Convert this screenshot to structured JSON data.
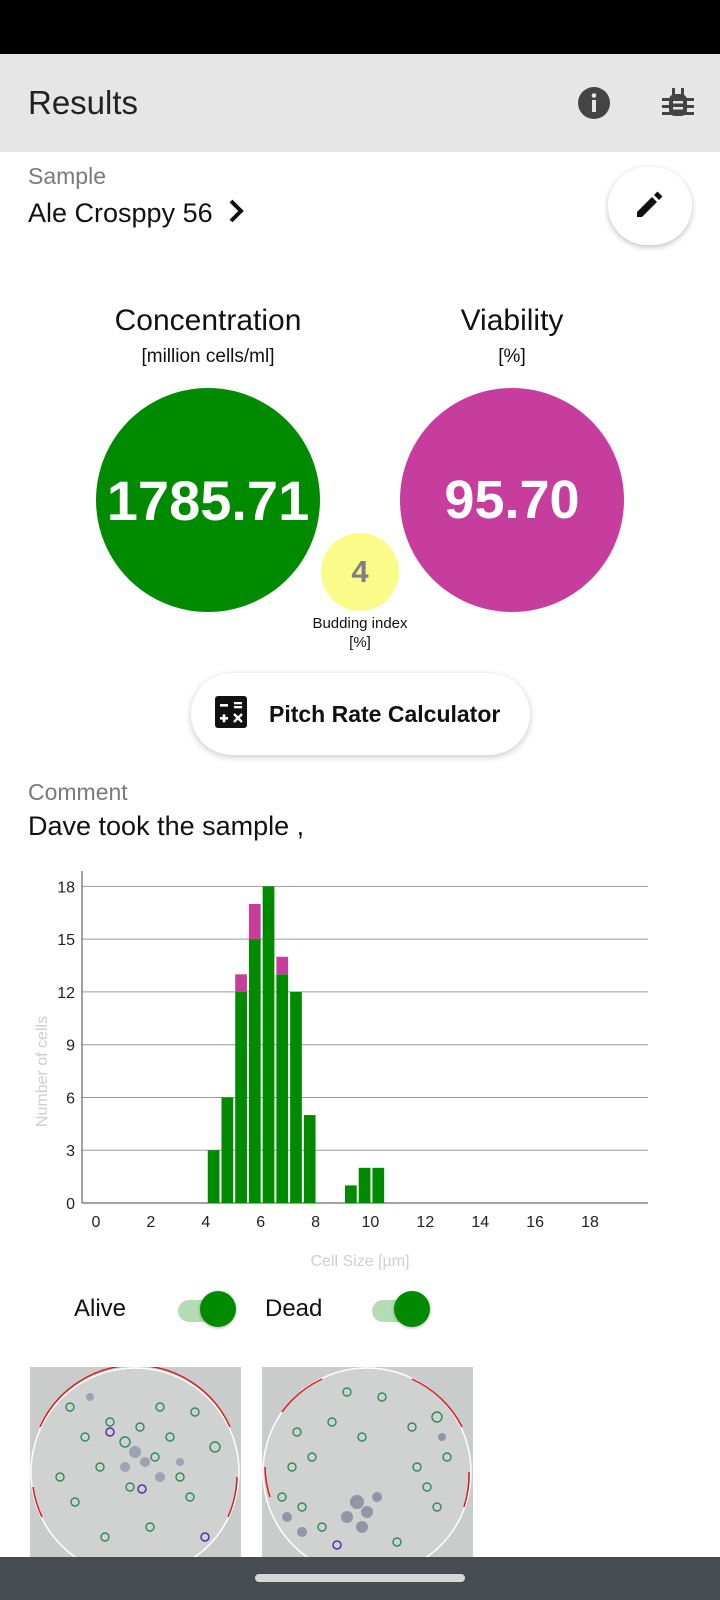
{
  "app_bar": {
    "title": "Results",
    "info_icon": "info-icon",
    "debug_icon": "bug-icon",
    "background": "#e6e6e6"
  },
  "sample": {
    "label": "Sample",
    "name": "Ale Crosppy 56",
    "edit_icon": "pencil-icon"
  },
  "concentration": {
    "title": "Concentration",
    "unit": "[million cells/ml]",
    "value": "1785.71",
    "color": "#008a00"
  },
  "viability": {
    "title": "Viability",
    "unit": "[%]",
    "value": "95.70",
    "color": "#c63d9d"
  },
  "budding": {
    "value": "4",
    "label": "Budding index",
    "unit": "[%]",
    "color": "#fbfb8a"
  },
  "pitch_button": {
    "label": "Pitch Rate Calculator",
    "icon": "calculator-icon"
  },
  "comment": {
    "label": "Comment",
    "text": "Dave took the sample ,"
  },
  "chart_data": {
    "type": "bar",
    "stacked": true,
    "bin_width": 0.5,
    "x": [
      4.5,
      5.0,
      5.5,
      6.0,
      6.5,
      7.0,
      7.5,
      8.0,
      9.5,
      10.0,
      10.5
    ],
    "series": [
      {
        "name": "Alive",
        "color": "#008a00",
        "values": [
          3,
          6,
          12,
          15,
          18,
          13,
          12,
          5,
          1,
          2,
          2
        ]
      },
      {
        "name": "Dead",
        "color": "#c63d9d",
        "values": [
          0,
          0,
          1,
          2,
          0,
          1,
          0,
          0,
          0,
          0,
          0
        ]
      }
    ],
    "xlabel": "Cell Size [µm]",
    "ylabel": "Number of cells",
    "xlim": [
      0,
      20
    ],
    "ylim": [
      0,
      19.5
    ],
    "x_ticks": [
      "0",
      "2",
      "4",
      "6",
      "8",
      "10",
      "12",
      "14",
      "16",
      "18"
    ],
    "y_ticks": [
      "0",
      "3",
      "6",
      "9",
      "12",
      "15",
      "18"
    ],
    "grid": "horizontal"
  },
  "toggles": {
    "alive_label": "Alive",
    "alive_on": true,
    "dead_label": "Dead",
    "dead_on": true
  },
  "images": {
    "count": 2
  }
}
